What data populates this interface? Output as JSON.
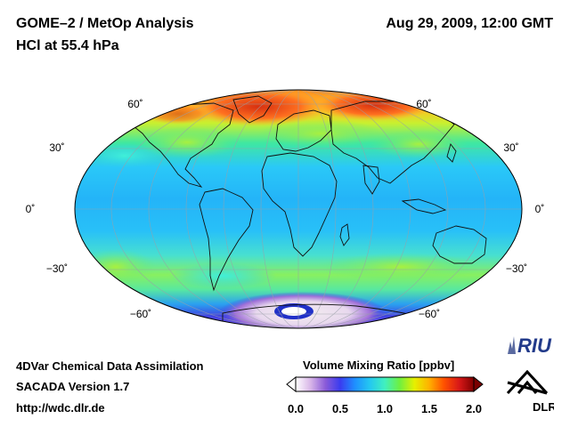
{
  "header": {
    "title_line1": "GOME–2 / MetOp Analysis",
    "title_line2": "HCl at 55.4 hPa",
    "datetime": "Aug 29, 2009, 12:00 GMT"
  },
  "map": {
    "projection": "Hammer",
    "latitude_labels": [
      {
        "lat": 60,
        "label": "60˚"
      },
      {
        "lat": 30,
        "label": "30˚"
      },
      {
        "lat": 0,
        "label": "0˚"
      },
      {
        "lat": -30,
        "label": "−30˚"
      },
      {
        "lat": -60,
        "label": "−60˚"
      }
    ],
    "field_description": "HCl volume mixing ratio field, blue-cyan in tropics, green-yellow at mid/high latitudes, orange-red over the northern polar region, white/purple depleted Antarctic region"
  },
  "colorbar": {
    "title": "Volume Mixing Ratio [ppbv]",
    "min": 0.0,
    "max": 2.0,
    "ticks": [
      "0.0",
      "0.5",
      "1.0",
      "1.5",
      "2.0"
    ],
    "colors": [
      "#ffffff",
      "#d8b6e8",
      "#8a5bd8",
      "#3a3cf0",
      "#1e90ff",
      "#24c8f0",
      "#40f0c0",
      "#6ef040",
      "#e6f000",
      "#ffb000",
      "#ff5000",
      "#d81818",
      "#800000"
    ]
  },
  "footer": {
    "line1": "4DVar Chemical Data Assimilation",
    "line2": "SACADA Version 1.7",
    "line3": "http://wdc.dlr.de"
  },
  "logos": {
    "riu_text": "RIU",
    "dlr_text": "DLR"
  }
}
